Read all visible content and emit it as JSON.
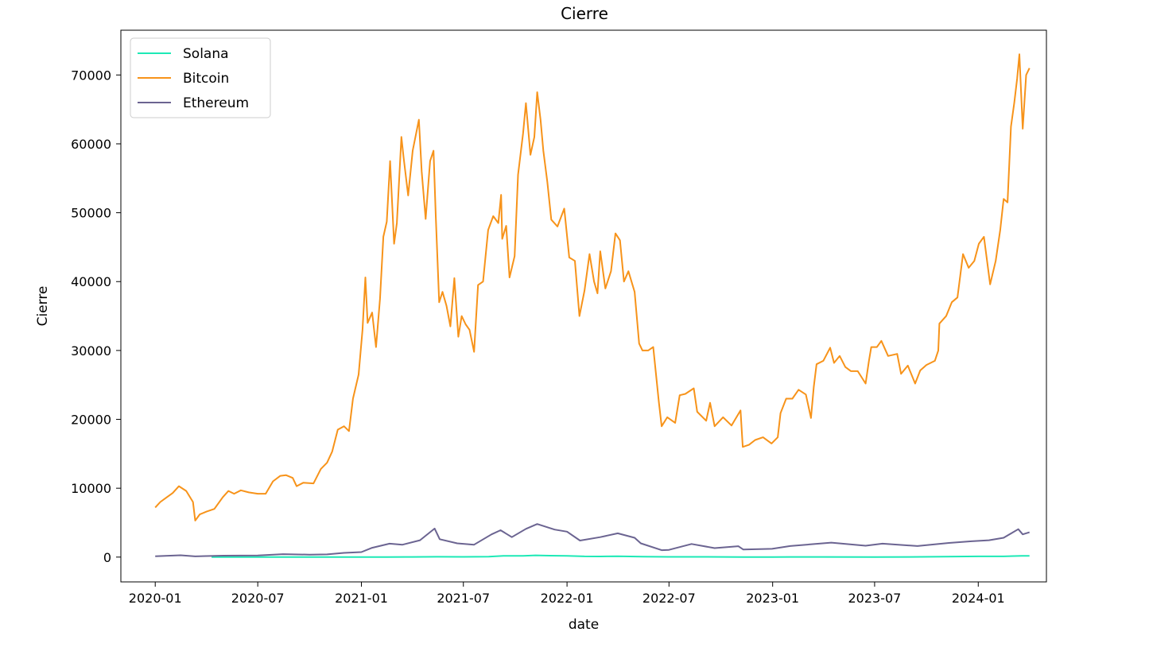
{
  "chart_data": {
    "type": "line",
    "title": "Cierre",
    "xlabel": "date",
    "ylabel": "Cierre",
    "x_axis_type": "date",
    "xlim": [
      "2019-11-01",
      "2024-05-01"
    ],
    "ylim": [
      -3600,
      76500
    ],
    "x_ticks": [
      "2020-01",
      "2020-07",
      "2021-01",
      "2021-07",
      "2022-01",
      "2022-07",
      "2023-01",
      "2023-07",
      "2024-01"
    ],
    "y_ticks": [
      0,
      10000,
      20000,
      30000,
      40000,
      50000,
      60000,
      70000
    ],
    "grid": false,
    "legend_position": "top-left",
    "series": [
      {
        "name": "Solana",
        "color": "#1de9b6",
        "points": [
          [
            "2020-04-10",
            1
          ],
          [
            "2020-07-01",
            2
          ],
          [
            "2020-09-01",
            3
          ],
          [
            "2020-11-01",
            2
          ],
          [
            "2021-01-01",
            2
          ],
          [
            "2021-02-15",
            10
          ],
          [
            "2021-04-01",
            20
          ],
          [
            "2021-05-15",
            45
          ],
          [
            "2021-07-01",
            35
          ],
          [
            "2021-08-15",
            60
          ],
          [
            "2021-09-10",
            190
          ],
          [
            "2021-10-15",
            170
          ],
          [
            "2021-11-06",
            255
          ],
          [
            "2021-12-01",
            210
          ],
          [
            "2022-01-01",
            170
          ],
          [
            "2022-02-01",
            100
          ],
          [
            "2022-03-01",
            90
          ],
          [
            "2022-04-01",
            120
          ],
          [
            "2022-05-15",
            55
          ],
          [
            "2022-07-01",
            35
          ],
          [
            "2022-09-01",
            32
          ],
          [
            "2022-11-10",
            14
          ],
          [
            "2023-01-01",
            10
          ],
          [
            "2023-02-01",
            22
          ],
          [
            "2023-04-01",
            20
          ],
          [
            "2023-07-01",
            18
          ],
          [
            "2023-09-01",
            20
          ],
          [
            "2023-11-01",
            55
          ],
          [
            "2024-01-01",
            100
          ],
          [
            "2024-02-15",
            110
          ],
          [
            "2024-03-18",
            190
          ],
          [
            "2024-04-01",
            185
          ]
        ]
      },
      {
        "name": "Bitcoin",
        "color": "#f7931a",
        "points": [
          [
            "2020-01-01",
            7200
          ],
          [
            "2020-01-10",
            8000
          ],
          [
            "2020-01-20",
            8600
          ],
          [
            "2020-02-01",
            9300
          ],
          [
            "2020-02-12",
            10300
          ],
          [
            "2020-02-25",
            9600
          ],
          [
            "2020-03-08",
            8000
          ],
          [
            "2020-03-12",
            5300
          ],
          [
            "2020-03-20",
            6200
          ],
          [
            "2020-04-01",
            6600
          ],
          [
            "2020-04-15",
            7000
          ],
          [
            "2020-04-30",
            8700
          ],
          [
            "2020-05-10",
            9600
          ],
          [
            "2020-05-20",
            9200
          ],
          [
            "2020-06-01",
            9700
          ],
          [
            "2020-06-15",
            9400
          ],
          [
            "2020-07-01",
            9200
          ],
          [
            "2020-07-15",
            9200
          ],
          [
            "2020-07-28",
            11000
          ],
          [
            "2020-08-10",
            11800
          ],
          [
            "2020-08-20",
            11900
          ],
          [
            "2020-09-01",
            11500
          ],
          [
            "2020-09-08",
            10300
          ],
          [
            "2020-09-20",
            10800
          ],
          [
            "2020-10-08",
            10700
          ],
          [
            "2020-10-21",
            12800
          ],
          [
            "2020-11-01",
            13700
          ],
          [
            "2020-11-10",
            15300
          ],
          [
            "2020-11-20",
            18500
          ],
          [
            "2020-12-01",
            19000
          ],
          [
            "2020-12-10",
            18300
          ],
          [
            "2020-12-17",
            23000
          ],
          [
            "2020-12-27",
            26500
          ],
          [
            "2021-01-03",
            33000
          ],
          [
            "2021-01-08",
            40600
          ],
          [
            "2021-01-12",
            34000
          ],
          [
            "2021-01-20",
            35500
          ],
          [
            "2021-01-27",
            30500
          ],
          [
            "2021-02-03",
            37500
          ],
          [
            "2021-02-09",
            46500
          ],
          [
            "2021-02-15",
            48700
          ],
          [
            "2021-02-21",
            57500
          ],
          [
            "2021-02-28",
            45500
          ],
          [
            "2021-03-05",
            48500
          ],
          [
            "2021-03-13",
            61000
          ],
          [
            "2021-03-17",
            58000
          ],
          [
            "2021-03-25",
            52500
          ],
          [
            "2021-04-02",
            59000
          ],
          [
            "2021-04-13",
            63500
          ],
          [
            "2021-04-18",
            56000
          ],
          [
            "2021-04-25",
            49100
          ],
          [
            "2021-05-03",
            57500
          ],
          [
            "2021-05-09",
            59000
          ],
          [
            "2021-05-13",
            49600
          ],
          [
            "2021-05-19",
            37000
          ],
          [
            "2021-05-25",
            38500
          ],
          [
            "2021-06-01",
            36500
          ],
          [
            "2021-06-08",
            33500
          ],
          [
            "2021-06-15",
            40500
          ],
          [
            "2021-06-22",
            32000
          ],
          [
            "2021-06-28",
            35000
          ],
          [
            "2021-07-05",
            33800
          ],
          [
            "2021-07-12",
            33000
          ],
          [
            "2021-07-20",
            29800
          ],
          [
            "2021-07-27",
            39500
          ],
          [
            "2021-08-05",
            40000
          ],
          [
            "2021-08-14",
            47500
          ],
          [
            "2021-08-23",
            49500
          ],
          [
            "2021-09-01",
            48500
          ],
          [
            "2021-09-06",
            52600
          ],
          [
            "2021-09-08",
            46200
          ],
          [
            "2021-09-15",
            48100
          ],
          [
            "2021-09-21",
            40600
          ],
          [
            "2021-09-30",
            43700
          ],
          [
            "2021-10-06",
            55500
          ],
          [
            "2021-10-15",
            61500
          ],
          [
            "2021-10-20",
            65900
          ],
          [
            "2021-10-28",
            58400
          ],
          [
            "2021-11-04",
            61000
          ],
          [
            "2021-11-09",
            67500
          ],
          [
            "2021-11-15",
            63500
          ],
          [
            "2021-11-20",
            59000
          ],
          [
            "2021-11-27",
            54500
          ],
          [
            "2021-12-04",
            49000
          ],
          [
            "2021-12-15",
            48000
          ],
          [
            "2021-12-27",
            50600
          ],
          [
            "2022-01-05",
            43500
          ],
          [
            "2022-01-15",
            43000
          ],
          [
            "2022-01-23",
            35000
          ],
          [
            "2022-02-01",
            38700
          ],
          [
            "2022-02-10",
            44000
          ],
          [
            "2022-02-18",
            40000
          ],
          [
            "2022-02-24",
            38300
          ],
          [
            "2022-03-01",
            44400
          ],
          [
            "2022-03-10",
            39000
          ],
          [
            "2022-03-20",
            41500
          ],
          [
            "2022-03-28",
            47000
          ],
          [
            "2022-04-05",
            46000
          ],
          [
            "2022-04-12",
            40000
          ],
          [
            "2022-04-20",
            41500
          ],
          [
            "2022-05-01",
            38500
          ],
          [
            "2022-05-09",
            31000
          ],
          [
            "2022-05-15",
            30000
          ],
          [
            "2022-05-25",
            30000
          ],
          [
            "2022-06-03",
            30500
          ],
          [
            "2022-06-13",
            22500
          ],
          [
            "2022-06-18",
            19000
          ],
          [
            "2022-06-28",
            20300
          ],
          [
            "2022-07-12",
            19500
          ],
          [
            "2022-07-20",
            23500
          ],
          [
            "2022-07-30",
            23700
          ],
          [
            "2022-08-14",
            24500
          ],
          [
            "2022-08-20",
            21100
          ],
          [
            "2022-09-05",
            19800
          ],
          [
            "2022-09-12",
            22400
          ],
          [
            "2022-09-20",
            19000
          ],
          [
            "2022-10-05",
            20300
          ],
          [
            "2022-10-20",
            19100
          ],
          [
            "2022-11-05",
            21300
          ],
          [
            "2022-11-09",
            16000
          ],
          [
            "2022-11-20",
            16300
          ],
          [
            "2022-12-01",
            17000
          ],
          [
            "2022-12-15",
            17400
          ],
          [
            "2022-12-30",
            16500
          ],
          [
            "2023-01-10",
            17400
          ],
          [
            "2023-01-15",
            20900
          ],
          [
            "2023-01-25",
            23000
          ],
          [
            "2023-02-05",
            23000
          ],
          [
            "2023-02-16",
            24300
          ],
          [
            "2023-03-01",
            23600
          ],
          [
            "2023-03-10",
            20200
          ],
          [
            "2023-03-15",
            24700
          ],
          [
            "2023-03-20",
            28000
          ],
          [
            "2023-04-01",
            28500
          ],
          [
            "2023-04-13",
            30400
          ],
          [
            "2023-04-20",
            28200
          ],
          [
            "2023-04-30",
            29200
          ],
          [
            "2023-05-10",
            27600
          ],
          [
            "2023-05-20",
            27000
          ],
          [
            "2023-06-01",
            27000
          ],
          [
            "2023-06-15",
            25200
          ],
          [
            "2023-06-21",
            28500
          ],
          [
            "2023-06-25",
            30500
          ],
          [
            "2023-07-05",
            30500
          ],
          [
            "2023-07-13",
            31400
          ],
          [
            "2023-07-25",
            29200
          ],
          [
            "2023-08-10",
            29500
          ],
          [
            "2023-08-17",
            26600
          ],
          [
            "2023-08-29",
            27800
          ],
          [
            "2023-09-11",
            25200
          ],
          [
            "2023-09-20",
            27100
          ],
          [
            "2023-10-01",
            27900
          ],
          [
            "2023-10-16",
            28500
          ],
          [
            "2023-10-22",
            30000
          ],
          [
            "2023-10-24",
            33900
          ],
          [
            "2023-11-05",
            35000
          ],
          [
            "2023-11-15",
            37000
          ],
          [
            "2023-11-25",
            37700
          ],
          [
            "2023-12-05",
            44000
          ],
          [
            "2023-12-15",
            42000
          ],
          [
            "2023-12-25",
            43000
          ],
          [
            "2024-01-02",
            45500
          ],
          [
            "2024-01-11",
            46500
          ],
          [
            "2024-01-22",
            39600
          ],
          [
            "2024-02-01",
            43000
          ],
          [
            "2024-02-09",
            47500
          ],
          [
            "2024-02-15",
            52000
          ],
          [
            "2024-02-22",
            51500
          ],
          [
            "2024-02-28",
            62500
          ],
          [
            "2024-03-05",
            66000
          ],
          [
            "2024-03-10",
            69500
          ],
          [
            "2024-03-14",
            73000
          ],
          [
            "2024-03-20",
            62200
          ],
          [
            "2024-03-26",
            70000
          ],
          [
            "2024-04-01",
            71000
          ]
        ]
      },
      {
        "name": "Ethereum",
        "color": "#6b6491",
        "points": [
          [
            "2020-01-01",
            130
          ],
          [
            "2020-02-15",
            270
          ],
          [
            "2020-03-12",
            110
          ],
          [
            "2020-05-01",
            210
          ],
          [
            "2020-07-01",
            230
          ],
          [
            "2020-08-15",
            430
          ],
          [
            "2020-10-01",
            360
          ],
          [
            "2020-11-01",
            390
          ],
          [
            "2020-12-01",
            610
          ],
          [
            "2021-01-01",
            730
          ],
          [
            "2021-01-20",
            1350
          ],
          [
            "2021-02-20",
            1950
          ],
          [
            "2021-03-15",
            1800
          ],
          [
            "2021-04-15",
            2450
          ],
          [
            "2021-05-11",
            4150
          ],
          [
            "2021-05-20",
            2600
          ],
          [
            "2021-06-20",
            2000
          ],
          [
            "2021-07-20",
            1800
          ],
          [
            "2021-08-20",
            3300
          ],
          [
            "2021-09-05",
            3900
          ],
          [
            "2021-09-25",
            2900
          ],
          [
            "2021-10-20",
            4100
          ],
          [
            "2021-11-09",
            4800
          ],
          [
            "2021-12-10",
            4000
          ],
          [
            "2022-01-01",
            3700
          ],
          [
            "2022-01-24",
            2400
          ],
          [
            "2022-03-01",
            2900
          ],
          [
            "2022-04-01",
            3450
          ],
          [
            "2022-05-01",
            2800
          ],
          [
            "2022-05-12",
            2000
          ],
          [
            "2022-06-18",
            1000
          ],
          [
            "2022-07-01",
            1050
          ],
          [
            "2022-08-10",
            1900
          ],
          [
            "2022-09-20",
            1300
          ],
          [
            "2022-11-01",
            1580
          ],
          [
            "2022-11-10",
            1100
          ],
          [
            "2022-12-31",
            1200
          ],
          [
            "2023-02-01",
            1600
          ],
          [
            "2023-04-15",
            2100
          ],
          [
            "2023-06-15",
            1650
          ],
          [
            "2023-07-15",
            1950
          ],
          [
            "2023-09-15",
            1600
          ],
          [
            "2023-11-10",
            2050
          ],
          [
            "2023-12-20",
            2300
          ],
          [
            "2024-01-20",
            2450
          ],
          [
            "2024-02-15",
            2800
          ],
          [
            "2024-03-12",
            4050
          ],
          [
            "2024-03-20",
            3300
          ],
          [
            "2024-04-01",
            3600
          ]
        ]
      }
    ]
  }
}
